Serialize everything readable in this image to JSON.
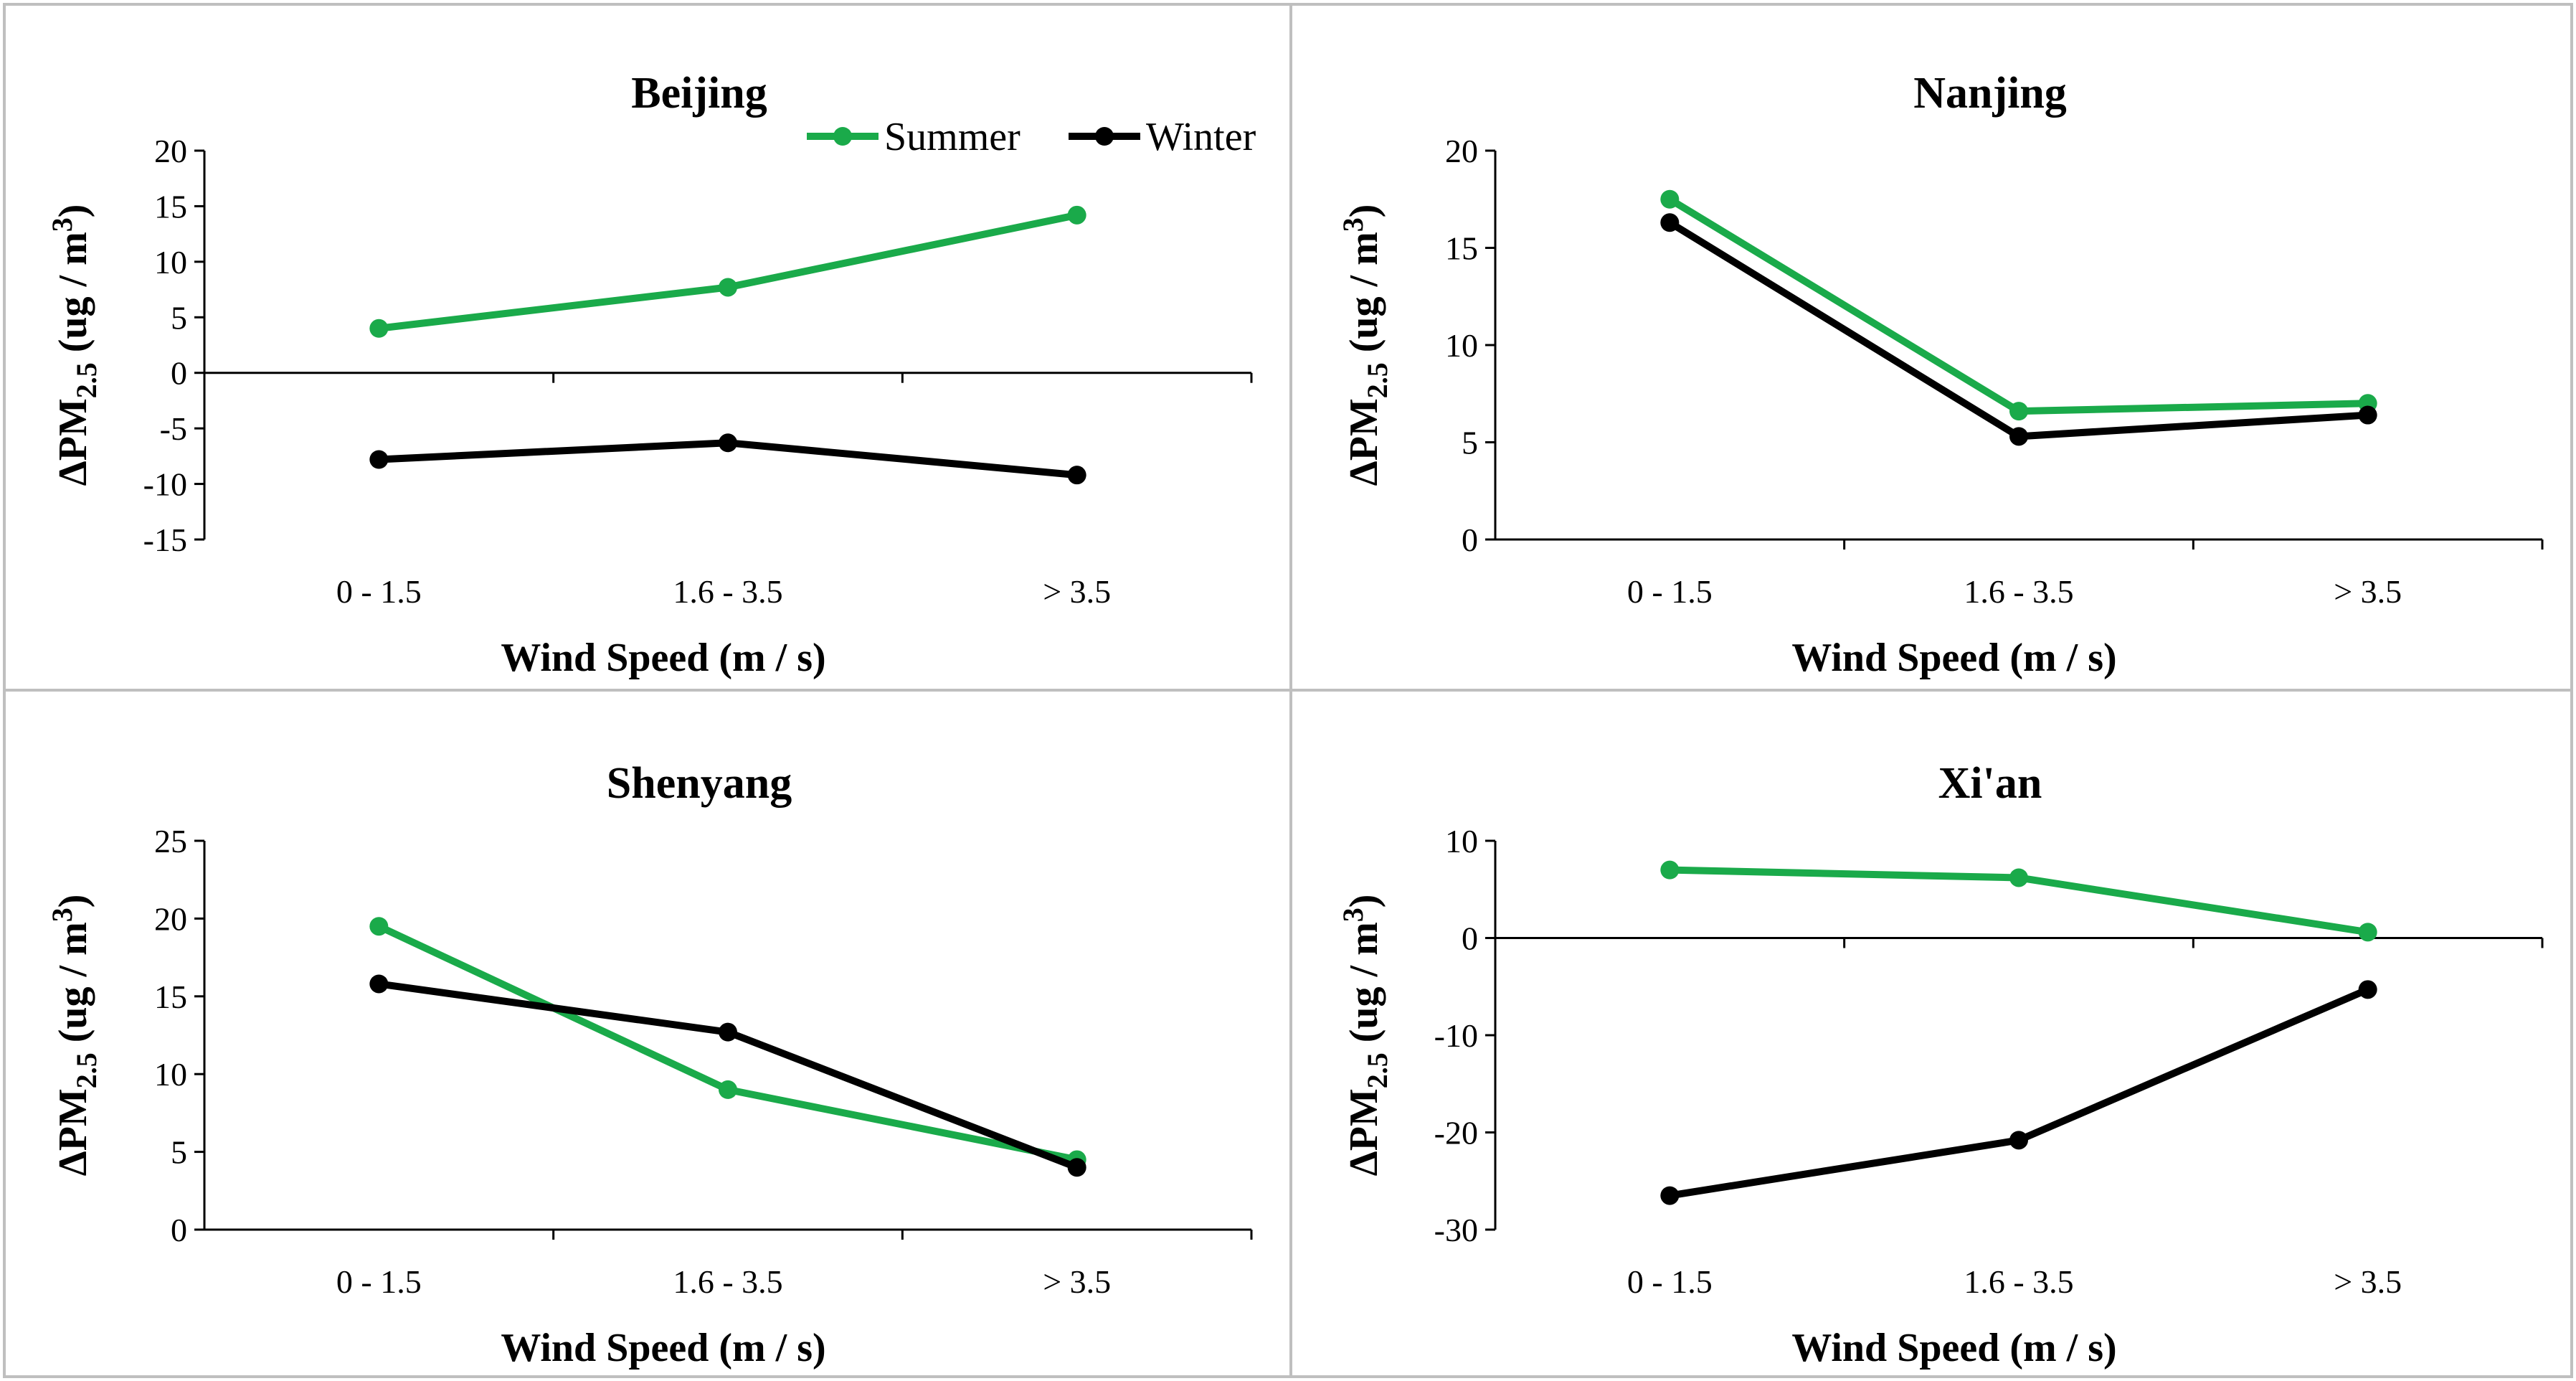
{
  "chart_data": [
    {
      "type": "line",
      "title": "Beijing",
      "xlabel": "Wind Speed (m / s)",
      "ylabel": "ΔPM2.5 (ug / m3)",
      "categories": [
        "0 - 1.5",
        "1.6 - 3.5",
        "> 3.5"
      ],
      "ylim": [
        -15,
        20
      ],
      "yticks": [
        -15,
        -10,
        -5,
        0,
        5,
        10,
        15,
        20
      ],
      "series": [
        {
          "name": "Summer",
          "color": "#1aaa4a",
          "values": [
            4.0,
            7.7,
            14.2
          ]
        },
        {
          "name": "Winter",
          "color": "#000000",
          "values": [
            -7.8,
            -6.3,
            -9.2
          ]
        }
      ],
      "legend": "top-right"
    },
    {
      "type": "line",
      "title": "Nanjing",
      "xlabel": "Wind Speed (m / s)",
      "ylabel": "ΔPM2.5 (ug / m3)",
      "categories": [
        "0 - 1.5",
        "1.6 - 3.5",
        "> 3.5"
      ],
      "ylim": [
        0,
        20
      ],
      "yticks": [
        0,
        5,
        10,
        15,
        20
      ],
      "series": [
        {
          "name": "Summer",
          "color": "#1aaa4a",
          "values": [
            17.5,
            6.6,
            7.0
          ]
        },
        {
          "name": "Winter",
          "color": "#000000",
          "values": [
            16.3,
            5.3,
            6.4
          ]
        }
      ]
    },
    {
      "type": "line",
      "title": "Shenyang",
      "xlabel": "Wind Speed (m / s)",
      "ylabel": "ΔPM2.5 (ug / m3)",
      "categories": [
        "0 - 1.5",
        "1.6 - 3.5",
        "> 3.5"
      ],
      "ylim": [
        0,
        25
      ],
      "yticks": [
        0,
        5,
        10,
        15,
        20,
        25
      ],
      "series": [
        {
          "name": "Summer",
          "color": "#1aaa4a",
          "values": [
            19.5,
            9.0,
            4.5
          ]
        },
        {
          "name": "Winter",
          "color": "#000000",
          "values": [
            15.8,
            12.7,
            4.0
          ]
        }
      ]
    },
    {
      "type": "line",
      "title": "Xi'an",
      "xlabel": "Wind Speed (m / s)",
      "ylabel": "ΔPM2.5 (ug / m3)",
      "categories": [
        "0 - 1.5",
        "1.6 - 3.5",
        "> 3.5"
      ],
      "ylim": [
        -30,
        10
      ],
      "yticks": [
        -30,
        -20,
        -10,
        0,
        10
      ],
      "series": [
        {
          "name": "Summer",
          "color": "#1aaa4a",
          "values": [
            7.0,
            6.2,
            0.6
          ]
        },
        {
          "name": "Winter",
          "color": "#000000",
          "values": [
            -26.5,
            -20.8,
            -5.3
          ]
        }
      ]
    }
  ]
}
